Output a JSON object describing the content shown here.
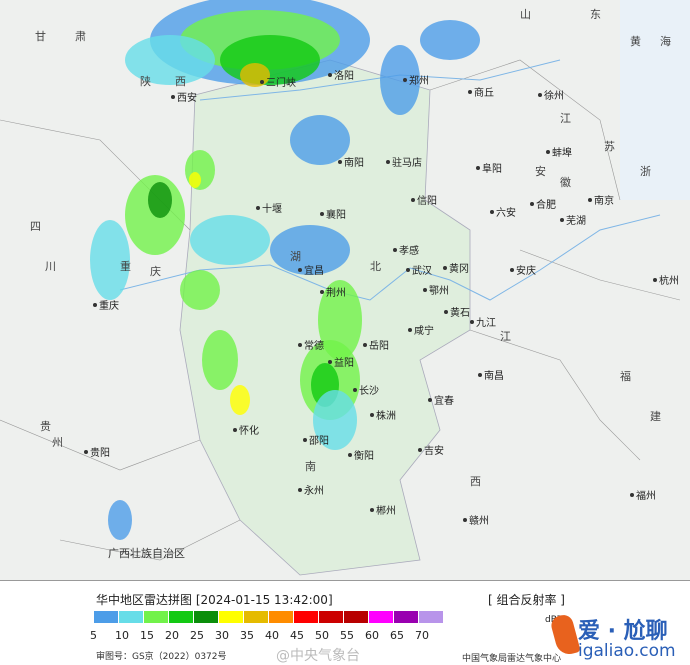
{
  "map": {
    "background_color": "#eef0ee",
    "region_color": "#dfeedd",
    "river_color": "#7fb6e6",
    "provinces": [
      "山",
      "东",
      "江",
      "苏",
      "安",
      "徽",
      "湖",
      "北",
      "南",
      "江",
      "西",
      "浙",
      "福",
      "建",
      "贵",
      "州",
      "四",
      "川",
      "重",
      "庆",
      "甘",
      "肃",
      "黄",
      "海",
      "陕",
      "西"
    ],
    "region_label": "广西壮族自治区",
    "cities": [
      "西安",
      "郑州",
      "洛阳",
      "三门峡",
      "商丘",
      "南阳",
      "驻马店",
      "信阳",
      "十堰",
      "襄阳",
      "宜昌",
      "荆州",
      "孝感",
      "武汉",
      "黄冈",
      "鄂州",
      "黄石",
      "咸宁",
      "岳阳",
      "常德",
      "益阳",
      "长沙",
      "株洲",
      "邵阳",
      "怀化",
      "衡阳",
      "永州",
      "郴州",
      "九江",
      "南昌",
      "安庆",
      "六安",
      "合肥",
      "阜阳",
      "蚌埠",
      "徐州",
      "南京",
      "芜湖",
      "杭州",
      "福州",
      "贵阳",
      "重庆",
      "吉安",
      "赣州",
      "宜春"
    ]
  },
  "legend": {
    "title": "华中地区雷达拼图 [2024-01-15 13:42:00]",
    "product": "[ 组合反射率 ]",
    "unit": "dBZ",
    "scale": [
      {
        "value": "5",
        "color": "#4d9de8"
      },
      {
        "value": "10",
        "color": "#67dde8"
      },
      {
        "value": "15",
        "color": "#72f24a"
      },
      {
        "value": "20",
        "color": "#13c913"
      },
      {
        "value": "25",
        "color": "#0b8e0b"
      },
      {
        "value": "30",
        "color": "#ffff00"
      },
      {
        "value": "35",
        "color": "#e5bb00"
      },
      {
        "value": "40",
        "color": "#ff8c00"
      },
      {
        "value": "45",
        "color": "#ff0000"
      },
      {
        "value": "50",
        "color": "#cc0000"
      },
      {
        "value": "55",
        "color": "#b80000"
      },
      {
        "value": "60",
        "color": "#ff00ff"
      },
      {
        "value": "65",
        "color": "#9900b0"
      },
      {
        "value": "70",
        "color": "#b894ea"
      }
    ],
    "approval": "审图号：GS京（2022）0372号",
    "weibo": "@中央气象台",
    "source": "中国气象局雷达气象中心"
  },
  "watermark": {
    "line1": "爱 · 尬聊",
    "line2": "igaliao.com"
  }
}
